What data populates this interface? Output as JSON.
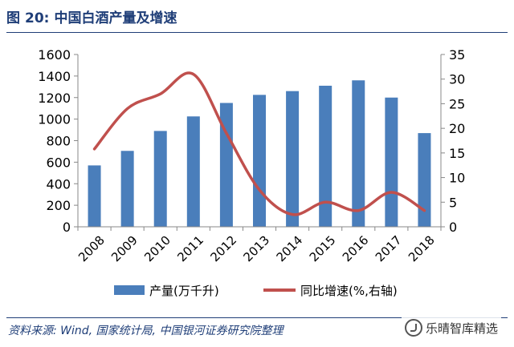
{
  "figure": {
    "label": "图",
    "number": "20:",
    "title": "中国白酒产量及增速",
    "source": "资料来源: Wind, 国家统计局, 中国银河证券研究院整理"
  },
  "watermark": {
    "text": "乐晴智库精选",
    "icon": "wechat-logo-icon"
  },
  "chart_data": {
    "type": "bar+line",
    "categories": [
      "2008",
      "2009",
      "2010",
      "2011",
      "2012",
      "2013",
      "2014",
      "2015",
      "2016",
      "2017",
      "2018"
    ],
    "series": [
      {
        "name": "产量(万千升)",
        "type": "bar",
        "axis": "left",
        "color": "#4a7ebb",
        "values": [
          570,
          705,
          890,
          1025,
          1150,
          1225,
          1260,
          1310,
          1360,
          1200,
          870
        ]
      },
      {
        "name": "同比增速(%,右轴)",
        "type": "line",
        "axis": "right",
        "color": "#c0504d",
        "values": [
          15.8,
          24.0,
          27.0,
          31.0,
          19.0,
          7.5,
          2.5,
          5.0,
          3.3,
          7.0,
          3.3
        ]
      }
    ],
    "y_left": {
      "min": 0,
      "max": 1600,
      "ticks": [
        0,
        200,
        400,
        600,
        800,
        1000,
        1200,
        1400,
        1600
      ]
    },
    "y_right": {
      "min": 0,
      "max": 35,
      "ticks": [
        0,
        5,
        10,
        15,
        20,
        25,
        30,
        35
      ]
    },
    "grid": false,
    "legend_position": "bottom"
  }
}
